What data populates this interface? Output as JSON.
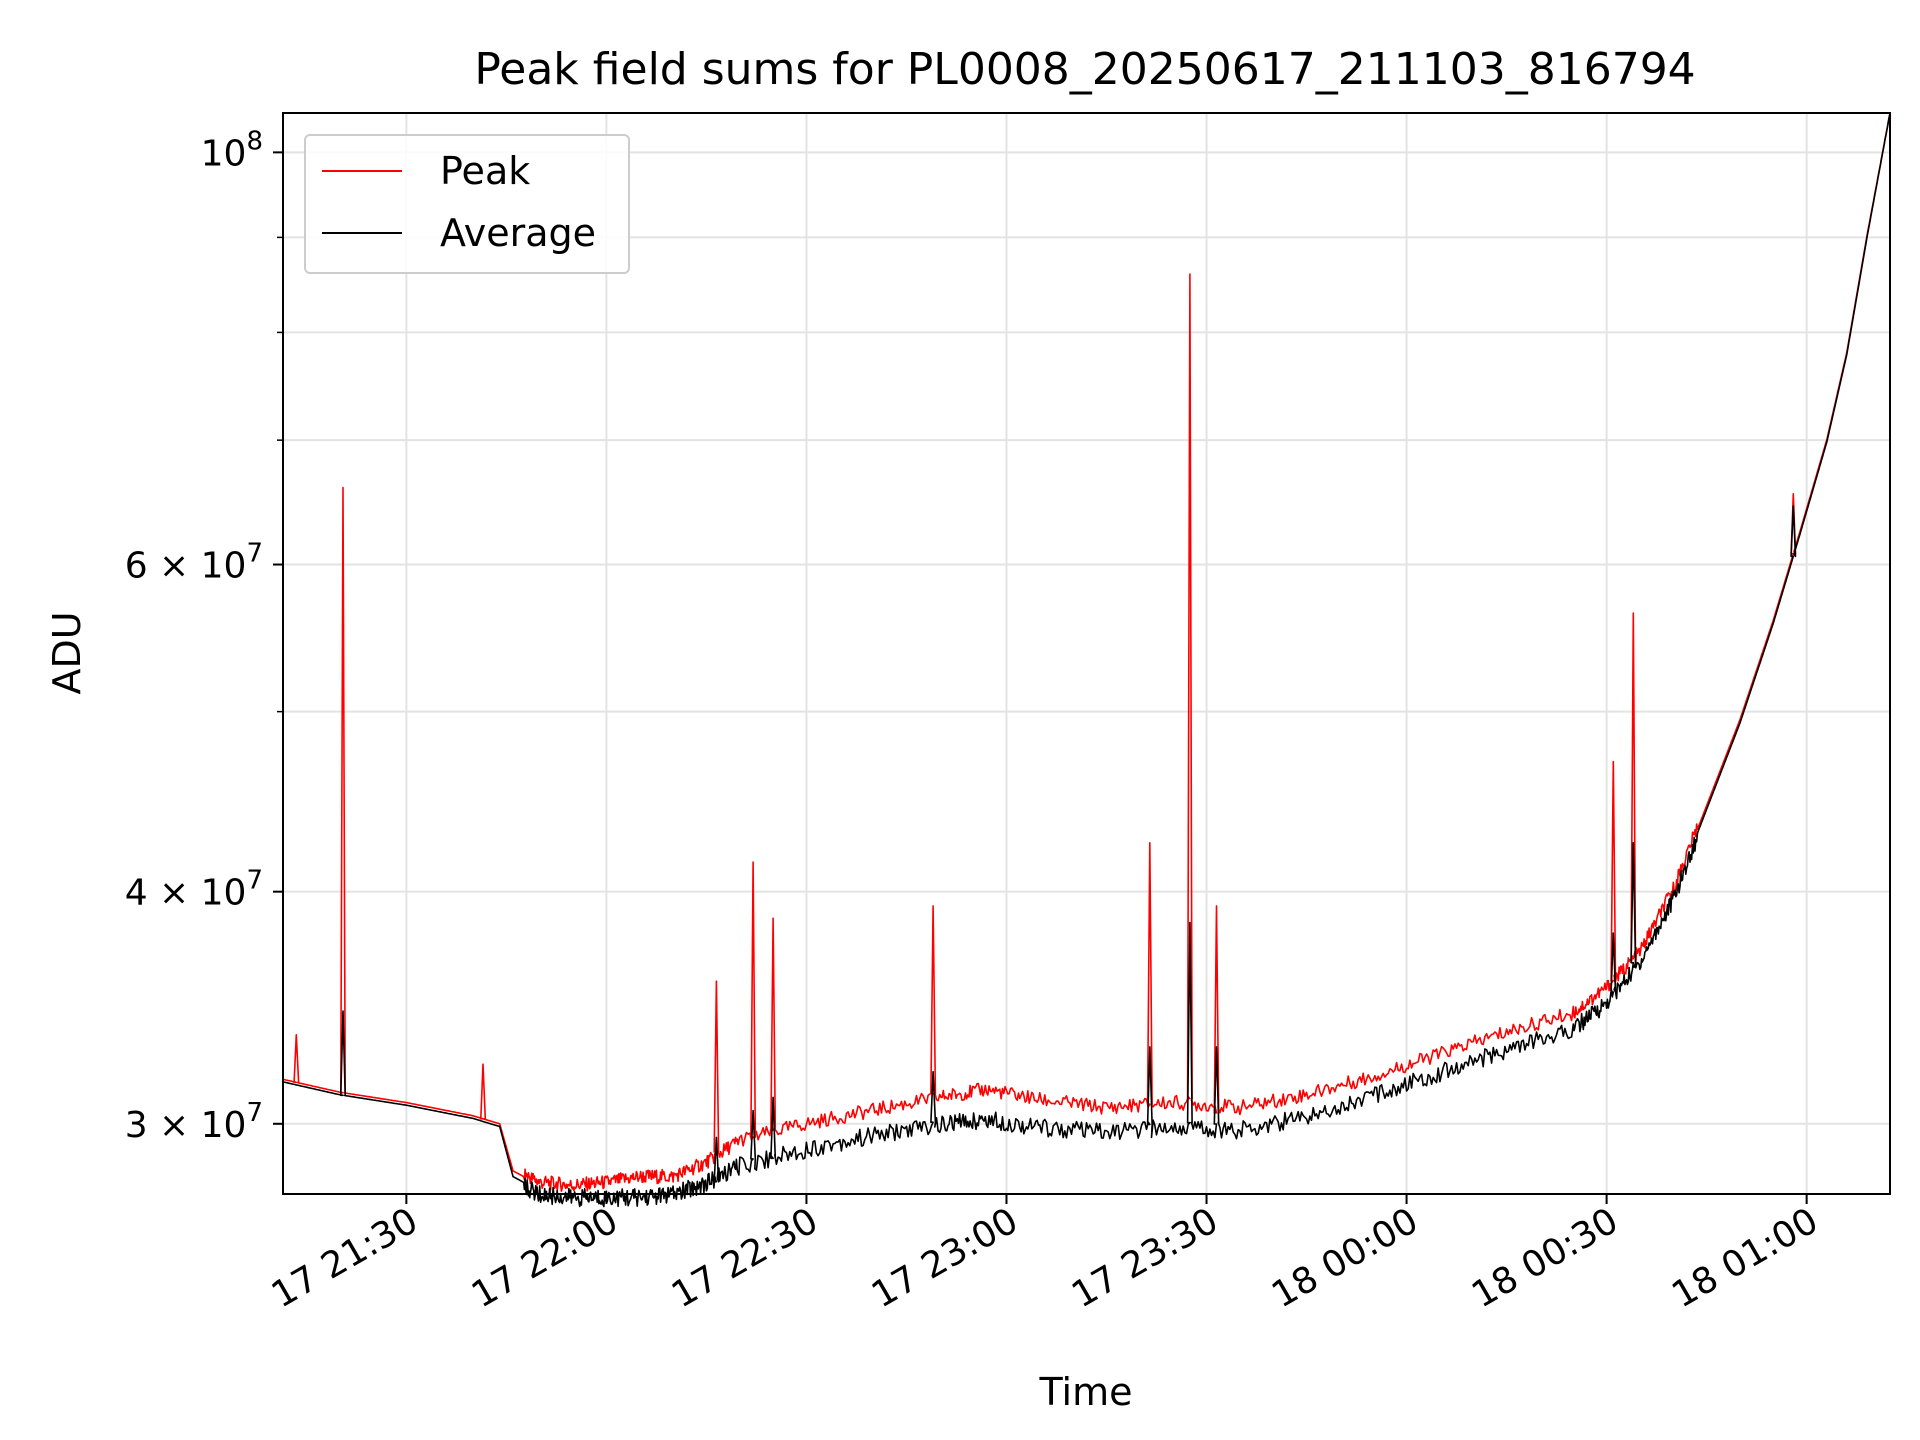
{
  "chart_data": {
    "type": "line",
    "title": "Peak field sums for PL0008_20250617_211103_816794",
    "xlabel": "Time",
    "ylabel": "ADU",
    "y_scale": "log",
    "ylim": [
      27500000,
      105000000
    ],
    "xlim": [
      "2025-06-17 21:11:30",
      "2025-06-18 01:12:30"
    ],
    "grid": true,
    "legend": {
      "position": "top-left",
      "entries": [
        "Peak",
        "Average"
      ]
    },
    "x_ticks": [
      {
        "value": "2025-06-17 21:30",
        "label": "17 21:30"
      },
      {
        "value": "2025-06-17 22:00",
        "label": "17 22:00"
      },
      {
        "value": "2025-06-17 22:30",
        "label": "17 22:30"
      },
      {
        "value": "2025-06-17 23:00",
        "label": "17 23:00"
      },
      {
        "value": "2025-06-17 23:30",
        "label": "17 23:30"
      },
      {
        "value": "2025-06-18 00:00",
        "label": "18 00:00"
      },
      {
        "value": "2025-06-18 00:30",
        "label": "18 00:30"
      },
      {
        "value": "2025-06-18 01:00",
        "label": "18 01:00"
      }
    ],
    "y_ticks": [
      {
        "value": 30000000,
        "mantissa": "3",
        "exponent": "7"
      },
      {
        "value": 40000000,
        "mantissa": "4",
        "exponent": "7"
      },
      {
        "value": 60000000,
        "mantissa": "6",
        "exponent": "7"
      },
      {
        "value": 100000000,
        "mantissa": "",
        "exponent": "8"
      }
    ],
    "y_minor_ticks": [
      50000000,
      70000000,
      80000000,
      90000000
    ],
    "series": [
      {
        "name": "Peak",
        "color": "#ff0000",
        "x": [
          "2025-06-17 21:11:30",
          "2025-06-17 21:20:00",
          "2025-06-17 21:30:00",
          "2025-06-17 21:40:00",
          "2025-06-17 21:44:00",
          "2025-06-17 21:46:00",
          "2025-06-17 21:50:00",
          "2025-06-17 21:55:00",
          "2025-06-17 22:00:00",
          "2025-06-17 22:05:00",
          "2025-06-17 22:10:00",
          "2025-06-17 22:15:00",
          "2025-06-17 22:20:00",
          "2025-06-17 22:30:00",
          "2025-06-17 22:40:00",
          "2025-06-17 22:50:00",
          "2025-06-17 22:57:00",
          "2025-06-17 23:05:00",
          "2025-06-17 23:15:00",
          "2025-06-17 23:25:00",
          "2025-06-17 23:35:00",
          "2025-06-17 23:45:00",
          "2025-06-17 23:55:00",
          "2025-06-18 00:05:00",
          "2025-06-18 00:15:00",
          "2025-06-18 00:25:00",
          "2025-06-18 00:30:00",
          "2025-06-18 00:35:00",
          "2025-06-18 00:40:00",
          "2025-06-18 00:45:00",
          "2025-06-18 00:50:00",
          "2025-06-18 00:55:00",
          "2025-06-18 00:59:00",
          "2025-06-18 01:03:00",
          "2025-06-18 01:06:00",
          "2025-06-18 01:09:00",
          "2025-06-18 01:12:30"
        ],
        "y": [
          31700000,
          31200000,
          30800000,
          30300000,
          30000000,
          28300000,
          27800000,
          27700000,
          27800000,
          28000000,
          28000000,
          28500000,
          29300000,
          29900000,
          30400000,
          30900000,
          31200000,
          30800000,
          30500000,
          30700000,
          30500000,
          31000000,
          31700000,
          32600000,
          33500000,
          34300000,
          35400000,
          37000000,
          40000000,
          44500000,
          49500000,
          56000000,
          62500000,
          70000000,
          78000000,
          90000000,
          105000000
        ],
        "spikes": [
          {
            "x": "2025-06-17 21:13:30",
            "y": 33500000
          },
          {
            "x": "2025-06-17 21:20:30",
            "y": 66000000
          },
          {
            "x": "2025-06-17 21:41:30",
            "y": 32300000
          },
          {
            "x": "2025-06-17 22:16:30",
            "y": 35800000
          },
          {
            "x": "2025-06-17 22:22:00",
            "y": 41500000
          },
          {
            "x": "2025-06-17 22:25:00",
            "y": 38700000
          },
          {
            "x": "2025-06-17 22:49:00",
            "y": 39300000
          },
          {
            "x": "2025-06-17 23:21:30",
            "y": 42500000
          },
          {
            "x": "2025-06-17 23:27:30",
            "y": 86000000
          },
          {
            "x": "2025-06-17 23:31:30",
            "y": 39300000
          },
          {
            "x": "2025-06-18 00:31:00",
            "y": 47000000
          },
          {
            "x": "2025-06-18 00:34:00",
            "y": 56500000
          },
          {
            "x": "2025-06-18 00:58:00",
            "y": 65500000
          }
        ]
      },
      {
        "name": "Average",
        "color": "#000000",
        "x": [
          "2025-06-17 21:11:30",
          "2025-06-17 21:20:00",
          "2025-06-17 21:30:00",
          "2025-06-17 21:40:00",
          "2025-06-17 21:44:00",
          "2025-06-17 21:46:00",
          "2025-06-17 21:50:00",
          "2025-06-17 21:55:00",
          "2025-06-17 22:00:00",
          "2025-06-17 22:05:00",
          "2025-06-17 22:10:00",
          "2025-06-17 22:15:00",
          "2025-06-17 22:20:00",
          "2025-06-17 22:30:00",
          "2025-06-17 22:40:00",
          "2025-06-17 22:50:00",
          "2025-06-17 22:57:00",
          "2025-06-17 23:05:00",
          "2025-06-17 23:15:00",
          "2025-06-17 23:25:00",
          "2025-06-17 23:35:00",
          "2025-06-17 23:45:00",
          "2025-06-17 23:55:00",
          "2025-06-18 00:05:00",
          "2025-06-18 00:15:00",
          "2025-06-18 00:25:00",
          "2025-06-18 00:30:00",
          "2025-06-18 00:35:00",
          "2025-06-18 00:40:00",
          "2025-06-18 00:45:00",
          "2025-06-18 00:50:00",
          "2025-06-18 00:55:00",
          "2025-06-18 00:59:00",
          "2025-06-18 01:03:00",
          "2025-06-18 01:06:00",
          "2025-06-18 01:09:00",
          "2025-06-18 01:12:30"
        ],
        "y": [
          31600000,
          31100000,
          30700000,
          30200000,
          29900000,
          28100000,
          27600000,
          27500000,
          27500000,
          27500000,
          27600000,
          28000000,
          28600000,
          29200000,
          29700000,
          30100000,
          30300000,
          30000000,
          29800000,
          30000000,
          29900000,
          30400000,
          31200000,
          32100000,
          33000000,
          33900000,
          35000000,
          36800000,
          39800000,
          44300000,
          49300000,
          55800000,
          62300000,
          69800000,
          77800000,
          89800000,
          105000000
        ],
        "spikes": [
          {
            "x": "2025-06-17 21:20:30",
            "y": 34500000
          },
          {
            "x": "2025-06-17 22:16:30",
            "y": 29500000
          },
          {
            "x": "2025-06-17 22:22:00",
            "y": 30500000
          },
          {
            "x": "2025-06-17 22:25:00",
            "y": 31000000
          },
          {
            "x": "2025-06-17 22:49:00",
            "y": 32000000
          },
          {
            "x": "2025-06-17 23:21:30",
            "y": 33000000
          },
          {
            "x": "2025-06-17 23:27:30",
            "y": 38500000
          },
          {
            "x": "2025-06-17 23:31:30",
            "y": 33000000
          },
          {
            "x": "2025-06-18 00:31:00",
            "y": 38000000
          },
          {
            "x": "2025-06-18 00:34:00",
            "y": 42500000
          },
          {
            "x": "2025-06-18 00:58:00",
            "y": 64500000
          }
        ]
      }
    ]
  }
}
